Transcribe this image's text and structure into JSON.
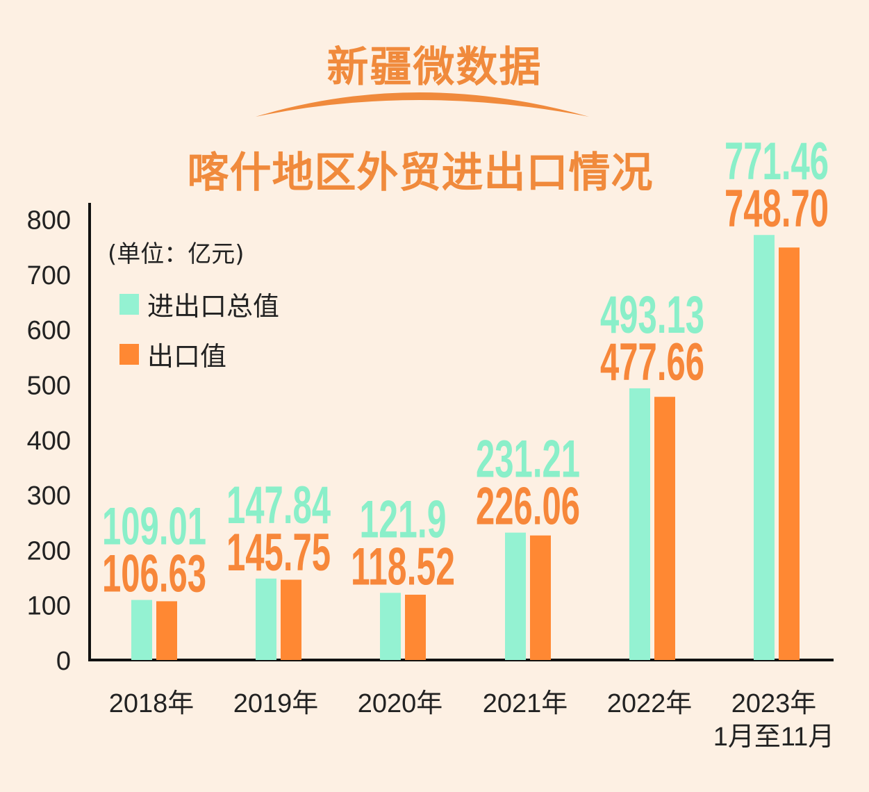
{
  "header": {
    "brand": "新疆微数据",
    "title": "喀什地区外贸进出口情况"
  },
  "colors": {
    "total": "#94F2D2",
    "total_label": "#8AEFC9",
    "export": "#FF8833",
    "export_label": "#F7873A",
    "accent": "#F08A3C",
    "axis": "#111111"
  },
  "chart_data": {
    "type": "bar",
    "unit": "(单位：亿元)",
    "categories": [
      [
        "2018年"
      ],
      [
        "2019年"
      ],
      [
        "2020年"
      ],
      [
        "2021年"
      ],
      [
        "2022年"
      ],
      [
        "2023年",
        "1月至11月"
      ]
    ],
    "series": [
      {
        "name": "进出口总值",
        "values": [
          109.01,
          147.84,
          121.9,
          231.21,
          493.13,
          771.46
        ],
        "labels": [
          "109.01",
          "147.84",
          "121.9",
          "231.21",
          "493.13",
          "771.46"
        ]
      },
      {
        "name": "出口值",
        "values": [
          106.63,
          145.75,
          118.52,
          226.06,
          477.66,
          748.7
        ],
        "labels": [
          "106.63",
          "145.75",
          "118.52",
          "226.06",
          "477.66",
          "748.70"
        ]
      }
    ],
    "yticks": [
      "0",
      "100",
      "200",
      "300",
      "400",
      "500",
      "600",
      "700",
      "800"
    ],
    "ylim": [
      0,
      800
    ],
    "legend": "top-left"
  }
}
